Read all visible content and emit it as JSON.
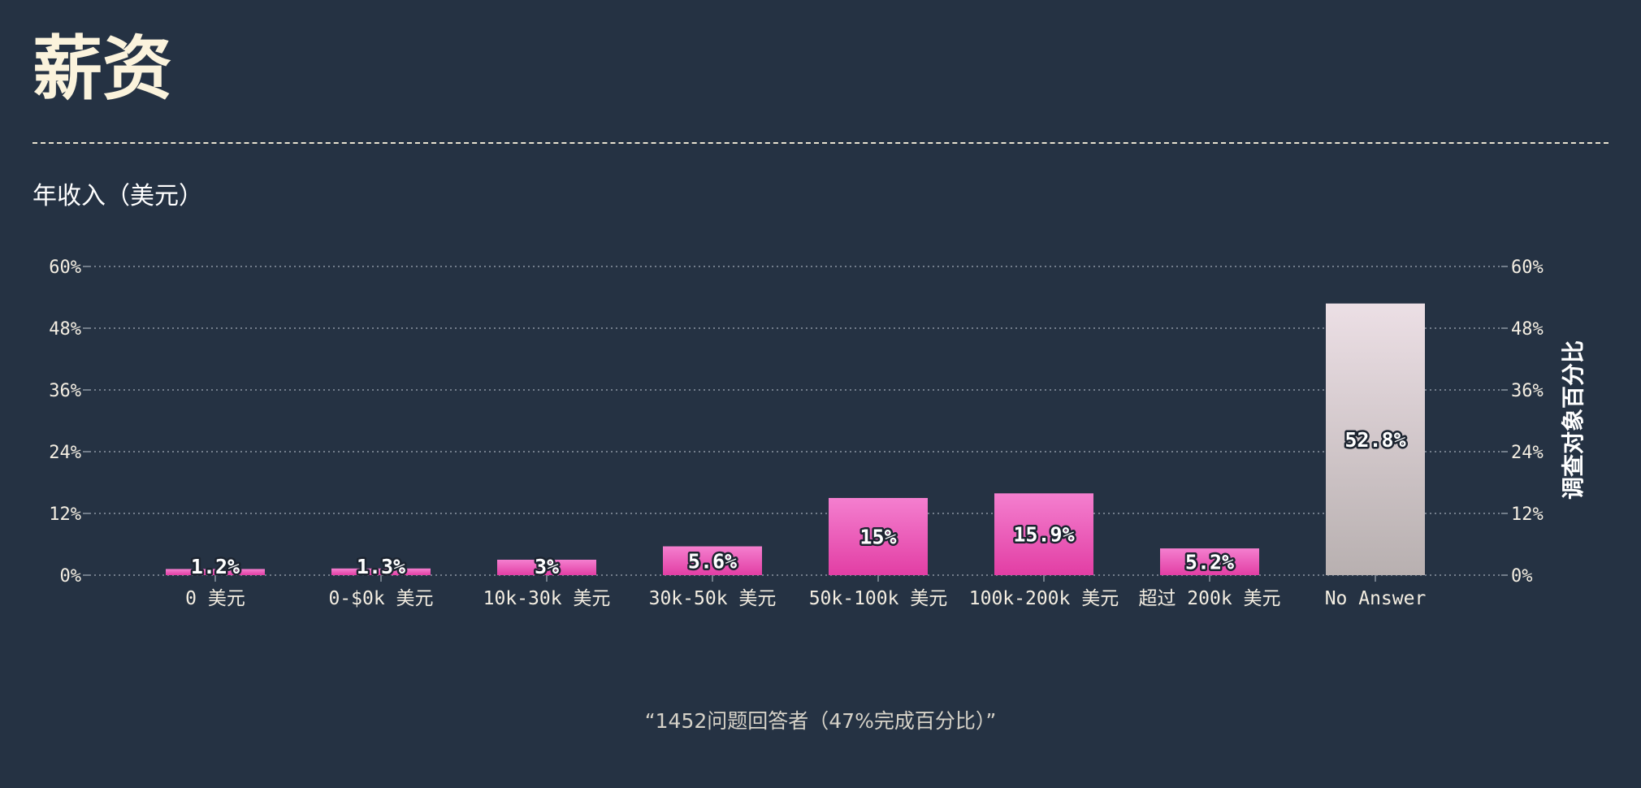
{
  "header": {
    "title": "薪资"
  },
  "chart_data": {
    "type": "bar",
    "title": "年收入（美元）",
    "xlabel": "",
    "ylabel": "",
    "y2label": "调查对象百分比",
    "categories": [
      "0 美元",
      "0-$0k 美元",
      "10k-30k 美元",
      "30k-50k 美元",
      "50k-100k 美元",
      "100k-200k 美元",
      "超过 200k 美元",
      "No Answer"
    ],
    "values": [
      1.2,
      1.3,
      3,
      5.6,
      15,
      15.9,
      5.2,
      52.8
    ],
    "value_labels": [
      "1.2%",
      "1.3%",
      "3%",
      "5.6%",
      "15%",
      "15.9%",
      "5.2%",
      "52.8%"
    ],
    "ylim": [
      0,
      60
    ],
    "yticks": [
      "0%",
      "12%",
      "24%",
      "36%",
      "48%",
      "60%"
    ],
    "ytick_values": [
      0,
      12,
      24,
      36,
      48,
      60
    ],
    "grid": true,
    "colors": {
      "bar_top": "#f47fcf",
      "bar_bottom": "#e23ea4",
      "na_top": "#ecdfe5",
      "na_bottom": "#b8b0b0",
      "grid": "#8d96a3",
      "axis_text": "#f4eee2"
    }
  },
  "footer": {
    "caption": "“1452问题回答者（47%完成百分比）”"
  }
}
